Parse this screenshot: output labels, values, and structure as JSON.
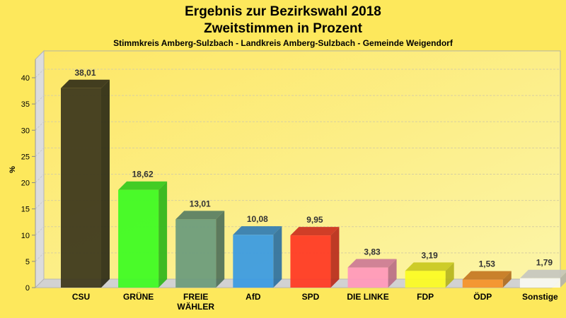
{
  "chart_data": {
    "type": "bar",
    "title": "Ergebnis zur Bezirkswahl 2018",
    "subtitle": "Zweitstimmen in Prozent",
    "subsubtitle": "Stimmkreis Amberg-Sulzbach - Landkreis Amberg-Sulzbach - Gemeinde Weigendorf",
    "xlabel": "",
    "ylabel": "%",
    "ylim": [
      0,
      40
    ],
    "yticks": [
      0,
      5,
      10,
      15,
      20,
      25,
      30,
      35,
      40
    ],
    "grid": true,
    "style": "3d",
    "categories": [
      "CSU",
      "GRÜNE",
      "FREIE WÄHLER",
      "AfD",
      "SPD",
      "DIE LINKE",
      "FDP",
      "ÖDP",
      "Sonstige"
    ],
    "category_lines": [
      [
        "CSU"
      ],
      [
        "GRÜNE"
      ],
      [
        "FREIE",
        "WÄHLER"
      ],
      [
        "AfD"
      ],
      [
        "SPD"
      ],
      [
        "DIE LINKE"
      ],
      [
        "FDP"
      ],
      [
        "ÖDP"
      ],
      [
        "Sonstige"
      ]
    ],
    "values": [
      38.01,
      18.62,
      13.01,
      10.08,
      9.95,
      3.83,
      3.19,
      1.53,
      1.79
    ],
    "value_labels": [
      "38,01",
      "18,62",
      "13,01",
      "10,08",
      "9,95",
      "3,83",
      "3,19",
      "1,53",
      "1,79"
    ],
    "colors": [
      "#3f3a1e",
      "#40fb24",
      "#6e9c7c",
      "#3d9be0",
      "#ff3b25",
      "#ff99bb",
      "#fbfb25",
      "#f59429",
      "#f8f8f0"
    ]
  }
}
